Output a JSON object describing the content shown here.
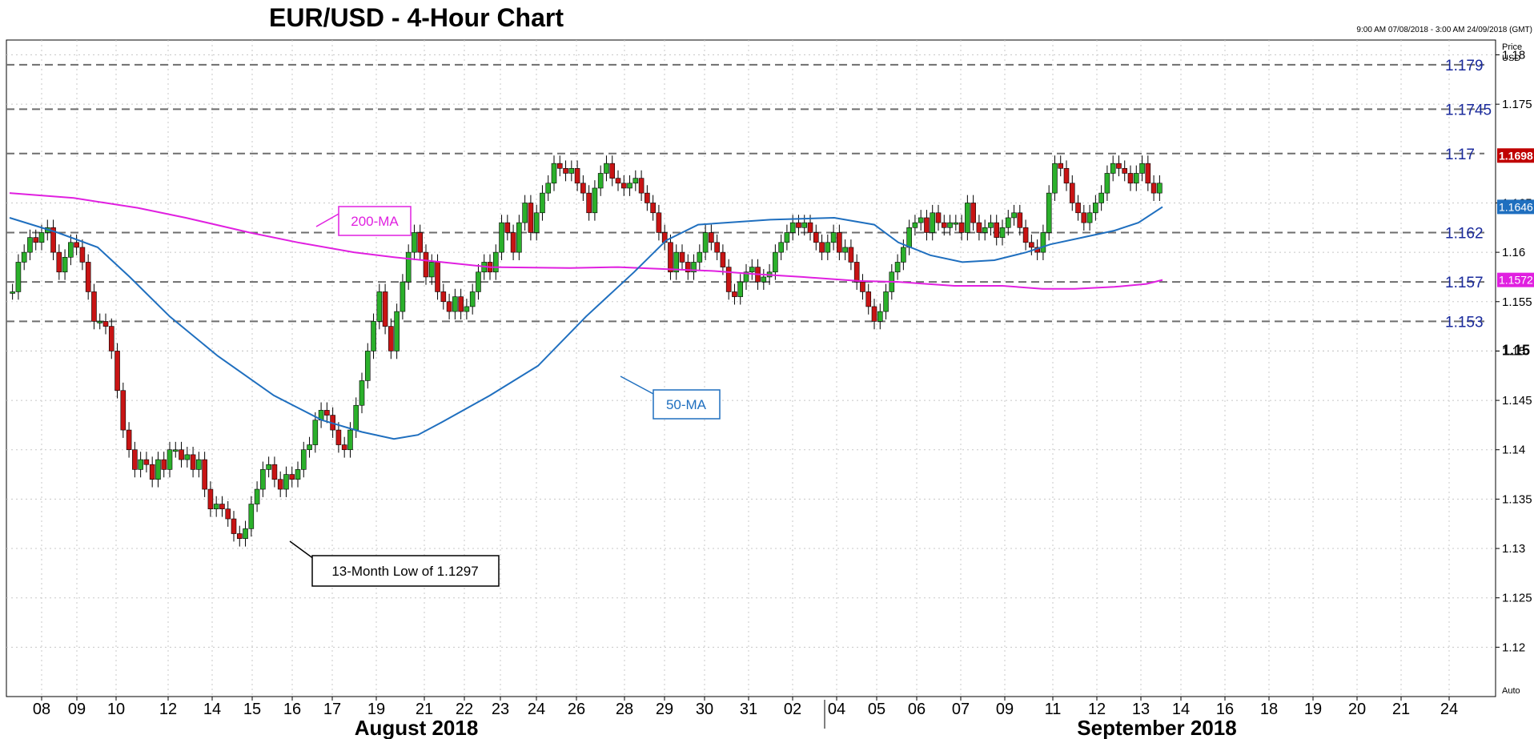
{
  "chart_data": {
    "type": "candlestick",
    "title": "EUR/USD - 4-Hour Chart",
    "range_text": "9:00 AM 07/08/2018 - 3:00 AM 24/09/2018 (GMT)",
    "ylabel": "Price USD",
    "ylabel_lines": [
      "Price",
      "USD"
    ],
    "ylim": [
      1.115,
      1.1815
    ],
    "y_ticks": [
      {
        "v": 1.18,
        "label": "1.18"
      },
      {
        "v": 1.175,
        "label": "1.175"
      },
      {
        "v": 1.165,
        "label": "1.165"
      },
      {
        "v": 1.16,
        "label": "1.16"
      },
      {
        "v": 1.155,
        "label": "1.155"
      },
      {
        "v": 1.15,
        "label": "1.15"
      },
      {
        "v": 1.145,
        "label": "1.145"
      },
      {
        "v": 1.14,
        "label": "1.14"
      },
      {
        "v": 1.135,
        "label": "1.135"
      },
      {
        "v": 1.13,
        "label": "1.13"
      },
      {
        "v": 1.125,
        "label": "1.125"
      },
      {
        "v": 1.12,
        "label": "1.12"
      }
    ],
    "x_ticks": [
      "08",
      "09",
      "10",
      "12",
      "14",
      "15",
      "16",
      "17",
      "19",
      "21",
      "22",
      "23",
      "24",
      "26",
      "28",
      "29",
      "30",
      "31",
      "02",
      "04",
      "05",
      "06",
      "07",
      "09",
      "11",
      "12",
      "13",
      "14",
      "16",
      "18",
      "19",
      "20",
      "21",
      "24"
    ],
    "x_month_labels": [
      "August 2018",
      "September 2018"
    ],
    "levels": [
      {
        "v": 1.179,
        "label": "1.179"
      },
      {
        "v": 1.1745,
        "label": "1.1745"
      },
      {
        "v": 1.17,
        "label": "1.17"
      },
      {
        "v": 1.162,
        "label": "1.162"
      },
      {
        "v": 1.157,
        "label": "1.157"
      },
      {
        "v": 1.153,
        "label": "1.153"
      }
    ],
    "last_price": {
      "value": 1.1698,
      "label": "1.1698",
      "color": "#c00000"
    },
    "ma_badges": [
      {
        "label": "1.1646",
        "value": 1.1646,
        "color": "#1f6fbf"
      },
      {
        "label": "1.1572",
        "value": 1.1572,
        "color": "#e020e0"
      }
    ],
    "ma50": [
      [
        0,
        1.1635
      ],
      [
        60,
        1.162
      ],
      [
        110,
        1.1605
      ],
      [
        150,
        1.1575
      ],
      [
        200,
        1.1535
      ],
      [
        260,
        1.1495
      ],
      [
        330,
        1.1455
      ],
      [
        390,
        1.143
      ],
      [
        440,
        1.1418
      ],
      [
        480,
        1.1411
      ],
      [
        510,
        1.1415
      ],
      [
        540,
        1.1428
      ],
      [
        600,
        1.1455
      ],
      [
        660,
        1.1485
      ],
      [
        720,
        1.1535
      ],
      [
        780,
        1.158
      ],
      [
        820,
        1.1612
      ],
      [
        860,
        1.1628
      ],
      [
        950,
        1.1633
      ],
      [
        1030,
        1.1635
      ],
      [
        1080,
        1.1628
      ],
      [
        1110,
        1.161
      ],
      [
        1150,
        1.1597
      ],
      [
        1190,
        1.159
      ],
      [
        1230,
        1.1592
      ],
      [
        1270,
        1.16
      ],
      [
        1300,
        1.1608
      ],
      [
        1340,
        1.1615
      ],
      [
        1380,
        1.1622
      ],
      [
        1410,
        1.163
      ],
      [
        1440,
        1.1646
      ]
    ],
    "ma200": [
      [
        0,
        1.166
      ],
      [
        80,
        1.1655
      ],
      [
        160,
        1.1645
      ],
      [
        220,
        1.1635
      ],
      [
        300,
        1.162
      ],
      [
        360,
        1.161
      ],
      [
        430,
        1.16
      ],
      [
        480,
        1.1595
      ],
      [
        540,
        1.159
      ],
      [
        600,
        1.1585
      ],
      [
        700,
        1.1584
      ],
      [
        760,
        1.1585
      ],
      [
        820,
        1.1583
      ],
      [
        880,
        1.1581
      ],
      [
        930,
        1.1578
      ],
      [
        990,
        1.1575
      ],
      [
        1060,
        1.1571
      ],
      [
        1110,
        1.157
      ],
      [
        1180,
        1.1566
      ],
      [
        1240,
        1.1566
      ],
      [
        1290,
        1.1563
      ],
      [
        1330,
        1.1563
      ],
      [
        1380,
        1.1565
      ],
      [
        1420,
        1.1568
      ],
      [
        1440,
        1.1572
      ]
    ],
    "candles_by_day": [
      [
        1.156,
        1.159,
        1.16,
        1.1615,
        1.161,
        1.162
      ],
      [
        1.1625,
        1.16,
        1.158,
        1.1595,
        1.161,
        1.1605
      ],
      [
        1.159,
        1.156,
        1.153,
        1.153,
        1.1525,
        1.15
      ],
      [
        1.146,
        1.142,
        1.14,
        1.138,
        1.139,
        1.1385,
        1.137,
        1.139,
        1.138,
        1.14,
        1.14,
        1.139
      ],
      [
        1.1395,
        1.138,
        1.139,
        1.136,
        1.134,
        1.1345
      ],
      [
        1.134,
        1.133,
        1.1315,
        1.131,
        1.132,
        1.1345
      ],
      [
        1.136,
        1.138,
        1.1385,
        1.137,
        1.136,
        1.1375
      ],
      [
        1.137,
        1.138,
        1.14,
        1.1405,
        1.143,
        1.144,
        1.1435,
        1.142,
        1.1405,
        1.14,
        1.142,
        1.1445
      ],
      [
        1.147,
        1.15,
        1.153,
        1.156,
        1.1525,
        1.15
      ],
      [
        1.154,
        1.157,
        1.16,
        1.162,
        1.16,
        1.1575
      ],
      [
        1.159,
        1.156,
        1.155,
        1.154,
        1.1555,
        1.154
      ],
      [
        1.1545,
        1.156,
        1.158,
        1.159,
        1.158,
        1.16
      ],
      [
        1.163,
        1.162,
        1.16,
        1.163,
        1.165,
        1.162,
        1.164,
        1.166,
        1.167,
        1.169,
        1.1685,
        1.168
      ],
      [
        1.1685,
        1.167,
        1.166,
        1.164,
        1.1665,
        1.168
      ],
      [
        1.169,
        1.1675,
        1.167,
        1.1665,
        1.167,
        1.1675
      ],
      [
        1.166,
        1.165,
        1.164,
        1.162,
        1.161,
        1.158
      ],
      [
        1.16,
        1.159,
        1.158,
        1.159,
        1.16,
        1.162,
        1.161,
        1.16,
        1.1585,
        1.156,
        1.1555,
        1.157
      ],
      [
        1.158,
        1.1585,
        1.157,
        1.1575,
        1.158,
        1.16
      ],
      [
        1.161,
        1.162,
        1.163,
        1.1625,
        1.163,
        1.162
      ],
      [
        1.161,
        1.16,
        1.161,
        1.162,
        1.16,
        1.1605
      ],
      [
        1.159,
        1.157,
        1.156,
        1.1545,
        1.153,
        1.154,
        1.156,
        1.158,
        1.159,
        1.1605,
        1.1625,
        1.163
      ],
      [
        1.1635,
        1.162,
        1.164,
        1.163,
        1.1625,
        1.163
      ],
      [
        1.163,
        1.162,
        1.165,
        1.163,
        1.162,
        1.1625
      ],
      [
        1.163,
        1.1615,
        1.1625,
        1.1635,
        1.164,
        1.1625,
        1.161,
        1.1605,
        1.16,
        1.162,
        1.166,
        1.169
      ],
      [
        1.1685,
        1.167,
        1.165,
        1.164,
        1.163,
        1.164
      ],
      [
        1.165,
        1.166,
        1.168,
        1.169,
        1.1685,
        1.168
      ],
      [
        1.167,
        1.168,
        1.169,
        1.167,
        1.166,
        1.167
      ]
    ],
    "annotations": [
      {
        "label": "200-MA",
        "color": "#e020e0"
      },
      {
        "label": "50-MA",
        "color": "#1f6fbf"
      },
      {
        "label": "13-Month Low of 1.1297",
        "color": "#000000"
      }
    ],
    "grid": true,
    "auto_label": "Auto"
  }
}
